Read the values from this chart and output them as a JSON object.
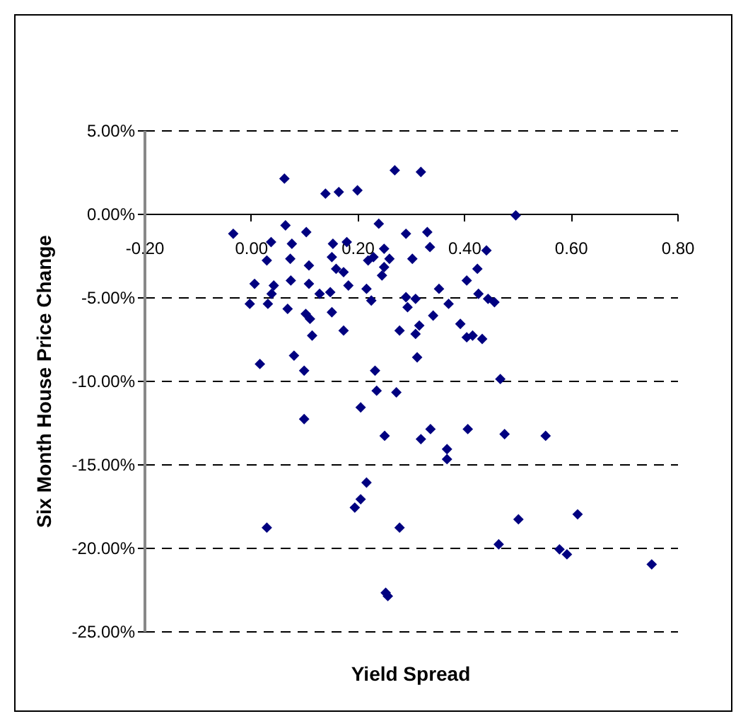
{
  "chart_data": {
    "type": "scatter",
    "xlabel": "Yield Spread",
    "ylabel": "Six Month House Price Change",
    "xlim": [
      -0.2,
      0.8
    ],
    "ylim": [
      -25,
      5
    ],
    "xticks": [
      {
        "value": -0.2,
        "label": "-0.20"
      },
      {
        "value": 0,
        "label": "0.00"
      },
      {
        "value": 0.2,
        "label": "0.20"
      },
      {
        "value": 0.4,
        "label": "0.40"
      },
      {
        "value": 0.6,
        "label": "0.60"
      },
      {
        "value": 0.8,
        "label": "0.80"
      }
    ],
    "yticks": [
      {
        "value": -25,
        "label": "-25.00%"
      },
      {
        "value": -20,
        "label": "-20.00%"
      },
      {
        "value": -15,
        "label": "-15.00%"
      },
      {
        "value": -10,
        "label": "-10.00%"
      },
      {
        "value": -5,
        "label": "-5.00%"
      },
      {
        "value": 0,
        "label": "0.00%"
      },
      {
        "value": 5,
        "label": "5.00%"
      }
    ],
    "grid": "y",
    "marker": "diamond",
    "series": [
      {
        "color": "#000080",
        "x": [
          -0.033,
          0.063,
          0.14,
          0.165,
          0.2,
          0.27,
          0.065,
          0.038,
          0.104,
          0.24,
          0.077,
          0.154,
          0.18,
          0.03,
          0.074,
          0.109,
          0.152,
          0.16,
          0.174,
          0.22,
          0.23,
          0.25,
          0.26,
          0.25,
          0.246,
          0.007,
          0.043,
          0.039,
          0.075,
          0.109,
          0.129,
          0.149,
          0.183,
          0.217,
          0.226,
          -0.002,
          0.032,
          0.069,
          0.103,
          0.111,
          0.152,
          0.115,
          0.174,
          0.279,
          0.017,
          0.081,
          0.1,
          0.233,
          0.1,
          0.03,
          0.236,
          0.273,
          0.206,
          0.251,
          0.217,
          0.206,
          0.195,
          0.279,
          0.253,
          0.257,
          0.312,
          0.468,
          0.319,
          0.337,
          0.407,
          0.368,
          0.368,
          0.476,
          0.553,
          0.502,
          0.613,
          0.465,
          0.579,
          0.593,
          0.752,
          0.319,
          0.497,
          0.291,
          0.331,
          0.336,
          0.303,
          0.442,
          0.425,
          0.405,
          0.353,
          0.291,
          0.309,
          0.294,
          0.371,
          0.427,
          0.445,
          0.457,
          0.342,
          0.393,
          0.405,
          0.416,
          0.434,
          0.316,
          0.309
        ],
        "values": [
          -1.2,
          2.1,
          1.2,
          1.3,
          1.4,
          2.6,
          -0.7,
          -1.7,
          -1.1,
          -0.6,
          -1.8,
          -1.8,
          -1.7,
          -2.8,
          -2.7,
          -3.1,
          -2.6,
          -3.3,
          -3.5,
          -2.8,
          -2.6,
          -2.1,
          -2.7,
          -3.2,
          -3.7,
          -4.2,
          -4.3,
          -4.8,
          -4.0,
          -4.2,
          -4.8,
          -4.7,
          -4.3,
          -4.5,
          -5.2,
          -5.4,
          -5.4,
          -5.7,
          -6.0,
          -6.3,
          -5.9,
          -7.3,
          -7.0,
          -7.0,
          -9.0,
          -8.5,
          -9.4,
          -9.4,
          -12.3,
          -18.8,
          -10.6,
          -10.7,
          -11.6,
          -13.3,
          -16.1,
          -17.1,
          -17.6,
          -18.8,
          -22.7,
          -22.9,
          -8.6,
          -9.9,
          -13.5,
          -12.9,
          -12.9,
          -14.1,
          -14.7,
          -13.2,
          -13.3,
          -18.3,
          -18.0,
          -19.8,
          -20.1,
          -20.4,
          -21.0,
          2.5,
          -0.1,
          -1.2,
          -1.1,
          -2.0,
          -2.7,
          -2.2,
          -3.3,
          -4.0,
          -4.5,
          -5.0,
          -5.1,
          -5.6,
          -5.4,
          -4.8,
          -5.1,
          -5.3,
          -6.1,
          -6.6,
          -7.4,
          -7.3,
          -7.5,
          -6.7,
          -7.2
        ]
      }
    ]
  }
}
